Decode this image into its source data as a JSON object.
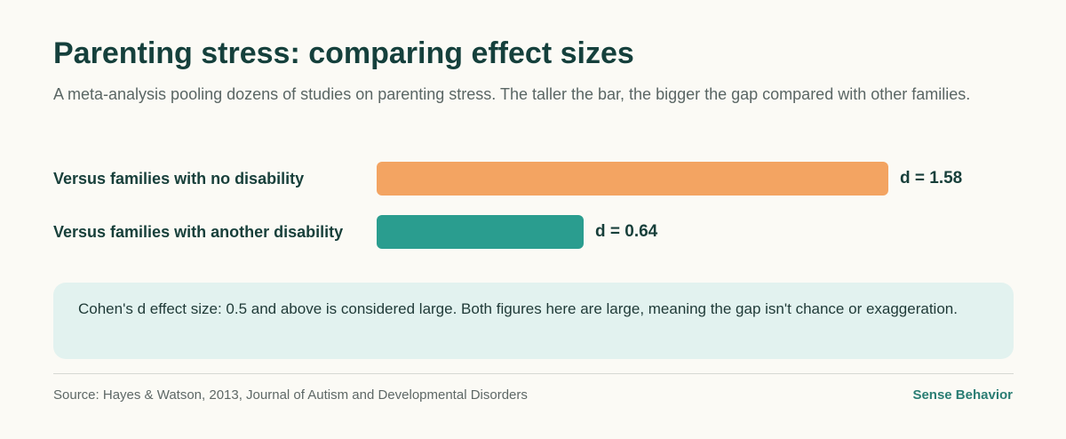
{
  "header": {
    "title": "Parenting stress: comparing effect sizes",
    "subtitle": "A meta-analysis pooling dozens of studies on parenting stress. The taller the bar, the bigger the gap compared with other families."
  },
  "chart_data": {
    "type": "bar",
    "orientation": "horizontal",
    "categories": [
      "Versus families with no disability",
      "Versus families with another disability"
    ],
    "values": [
      1.58,
      0.64
    ],
    "value_labels": [
      "d = 1.58",
      "d = 0.64"
    ],
    "colors": [
      "#f3a462",
      "#2a9d8f"
    ],
    "xlim": [
      0,
      1.58
    ],
    "grid": false,
    "legend": "none"
  },
  "note": {
    "text": "Cohen's d effect size: 0.5 and above is considered large. Both figures here are large, meaning the gap isn't chance or exaggeration."
  },
  "footer": {
    "source": "Source: Hayes & Watson, 2013, Journal of Autism and Developmental Disorders",
    "brand": "Sense Behavior"
  }
}
